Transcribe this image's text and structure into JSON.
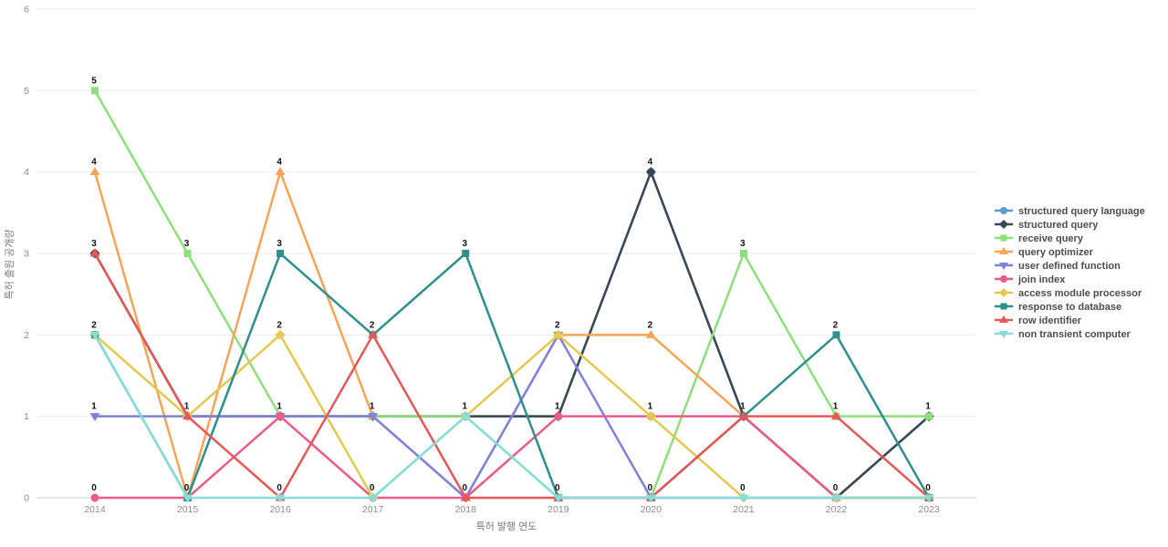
{
  "chart_data": {
    "type": "line",
    "x": [
      2014,
      2015,
      2016,
      2017,
      2018,
      2019,
      2020,
      2021,
      2022,
      2023
    ],
    "xlabel": "특허 발행 연도",
    "ylabel": "특허 출원 공개량",
    "ylim": [
      0,
      6
    ],
    "yticks": [
      0,
      1,
      2,
      3,
      4,
      5,
      6
    ],
    "grid": true,
    "legend_position": "right",
    "point_labels_visible": true,
    "series": [
      {
        "name": "structured query language",
        "color": "#5b9bd5",
        "symbol": "circle",
        "values": [
          3,
          1,
          1,
          1,
          1,
          1,
          4,
          1,
          0,
          1
        ]
      },
      {
        "name": "structured query",
        "color": "#3b4754",
        "symbol": "diamond",
        "values": [
          3,
          1,
          1,
          1,
          1,
          1,
          4,
          1,
          0,
          1
        ]
      },
      {
        "name": "receive query",
        "color": "#8ce07a",
        "symbol": "square",
        "values": [
          5,
          3,
          1,
          1,
          1,
          0,
          0,
          3,
          1,
          1
        ]
      },
      {
        "name": "query optimizer",
        "color": "#f7a456",
        "symbol": "triangle-up",
        "values": [
          4,
          0,
          4,
          1,
          0,
          2,
          2,
          1,
          0,
          0
        ]
      },
      {
        "name": "user defined function",
        "color": "#7d82dd",
        "symbol": "triangle-down",
        "values": [
          1,
          1,
          1,
          1,
          0,
          2,
          0,
          0,
          0,
          0
        ]
      },
      {
        "name": "join index",
        "color": "#ea5c87",
        "symbol": "circle",
        "values": [
          0,
          0,
          1,
          0,
          0,
          1,
          1,
          1,
          0,
          0
        ]
      },
      {
        "name": "access module processor",
        "color": "#e4c94f",
        "symbol": "diamond",
        "values": [
          2,
          1,
          2,
          0,
          1,
          2,
          1,
          0,
          0,
          0
        ]
      },
      {
        "name": "response to database",
        "color": "#2f8e8e",
        "symbol": "square",
        "values": [
          2,
          0,
          3,
          2,
          3,
          0,
          0,
          1,
          2,
          0
        ]
      },
      {
        "name": "row identifier",
        "color": "#e85757",
        "symbol": "triangle-up",
        "values": [
          3,
          1,
          0,
          2,
          0,
          0,
          0,
          1,
          1,
          0
        ]
      },
      {
        "name": "non transient computer",
        "color": "#85ded8",
        "symbol": "triangle-down",
        "values": [
          2,
          0,
          0,
          0,
          1,
          0,
          0,
          0,
          0,
          0
        ]
      }
    ]
  },
  "colors": {
    "background": "#ffffff",
    "grid_line": "#ebebeb",
    "zero_line": "#d9e1ec",
    "tick_label": "#8c8c8c",
    "axis_title": "#7a7a7a",
    "point_label": "#111111",
    "legend_text": "#4d4d4d"
  }
}
